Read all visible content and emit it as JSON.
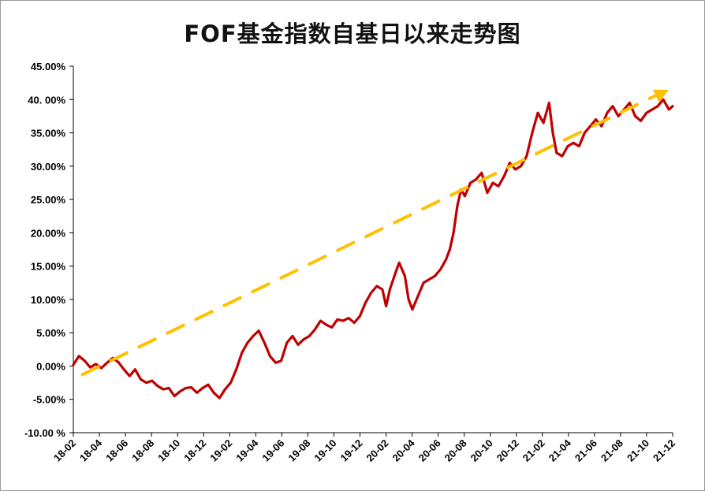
{
  "chart_data": {
    "type": "line",
    "title": "FOF基金指数自基日以来走势图",
    "xlabel": "",
    "ylabel": "",
    "ylim": [
      -10,
      45
    ],
    "y_ticks": [
      45,
      40,
      35,
      30,
      25,
      20,
      15,
      10,
      5,
      0,
      -5,
      -10
    ],
    "y_tick_labels": [
      "45.00%",
      "40. 00%",
      "35.00%",
      "30.00%",
      "25.00%",
      "20.00%",
      "15.00%",
      "10.00%",
      "5.00%",
      "0.00%",
      "-5.00%",
      "-10.00 %"
    ],
    "x_tick_labels": [
      "18-02",
      "18-04",
      "18-06",
      "18-08",
      "18-10",
      "18-12",
      "19-02",
      "19-04",
      "19-06",
      "19-08",
      "19-10",
      "19-12",
      "20-02",
      "20-04",
      "20-06",
      "20-08",
      "20-10",
      "20-12",
      "21-02",
      "21-04",
      "21-06",
      "21-08",
      "21-10",
      "21-12"
    ],
    "grid": false,
    "legend": "none",
    "colors": {
      "series": "#c00000",
      "trend": "#ffc000"
    },
    "series": [
      {
        "values": [
          [
            0,
            0.2
          ],
          [
            0.3,
            1.5
          ],
          [
            0.6,
            0.8
          ],
          [
            0.9,
            -0.2
          ],
          [
            1.2,
            0.3
          ],
          [
            1.5,
            -0.3
          ],
          [
            1.8,
            0.5
          ],
          [
            2.1,
            1.2
          ],
          [
            2.4,
            0.6
          ],
          [
            2.7,
            -0.5
          ],
          [
            3.0,
            -1.5
          ],
          [
            3.3,
            -0.5
          ],
          [
            3.6,
            -2.0
          ],
          [
            3.9,
            -2.5
          ],
          [
            4.2,
            -2.2
          ],
          [
            4.5,
            -3.0
          ],
          [
            4.8,
            -3.5
          ],
          [
            5.1,
            -3.3
          ],
          [
            5.4,
            -4.5
          ],
          [
            5.7,
            -3.8
          ],
          [
            6.0,
            -3.3
          ],
          [
            6.3,
            -3.2
          ],
          [
            6.6,
            -4.0
          ],
          [
            6.9,
            -3.3
          ],
          [
            7.2,
            -2.8
          ],
          [
            7.5,
            -4.0
          ],
          [
            7.8,
            -4.8
          ],
          [
            8.1,
            -3.5
          ],
          [
            8.4,
            -2.5
          ],
          [
            8.7,
            -0.5
          ],
          [
            9.0,
            2.0
          ],
          [
            9.3,
            3.5
          ],
          [
            9.6,
            4.5
          ],
          [
            9.9,
            5.3
          ],
          [
            10.2,
            3.5
          ],
          [
            10.5,
            1.5
          ],
          [
            10.8,
            0.5
          ],
          [
            11.1,
            0.8
          ],
          [
            11.4,
            3.5
          ],
          [
            11.7,
            4.5
          ],
          [
            12.0,
            3.2
          ],
          [
            12.3,
            4.0
          ],
          [
            12.6,
            4.5
          ],
          [
            12.9,
            5.5
          ],
          [
            13.2,
            6.8
          ],
          [
            13.5,
            6.2
          ],
          [
            13.8,
            5.8
          ],
          [
            14.1,
            7.0
          ],
          [
            14.4,
            6.8
          ],
          [
            14.7,
            7.2
          ],
          [
            15.0,
            6.5
          ],
          [
            15.3,
            7.5
          ],
          [
            15.6,
            9.5
          ],
          [
            15.9,
            11.0
          ],
          [
            16.2,
            12.0
          ],
          [
            16.5,
            11.5
          ],
          [
            16.7,
            9.0
          ],
          [
            16.9,
            11.5
          ],
          [
            17.2,
            14.0
          ],
          [
            17.4,
            15.5
          ],
          [
            17.7,
            13.5
          ],
          [
            17.9,
            10.0
          ],
          [
            18.1,
            8.5
          ],
          [
            18.4,
            10.5
          ],
          [
            18.7,
            12.5
          ],
          [
            19.0,
            13.0
          ],
          [
            19.3,
            13.5
          ],
          [
            19.6,
            14.5
          ],
          [
            19.9,
            16.0
          ],
          [
            20.1,
            17.5
          ],
          [
            20.3,
            20.0
          ],
          [
            20.5,
            24.0
          ],
          [
            20.7,
            26.5
          ],
          [
            20.9,
            25.5
          ],
          [
            21.2,
            27.5
          ],
          [
            21.5,
            28.0
          ],
          [
            21.8,
            29.0
          ],
          [
            22.1,
            26.0
          ],
          [
            22.4,
            27.5
          ],
          [
            22.7,
            27.0
          ],
          [
            23.0,
            28.5
          ],
          [
            23.3,
            30.5
          ],
          [
            23.6,
            29.5
          ],
          [
            23.9,
            30.0
          ],
          [
            24.2,
            31.5
          ],
          [
            24.5,
            35.0
          ],
          [
            24.8,
            38.0
          ],
          [
            25.1,
            36.5
          ],
          [
            25.4,
            39.5
          ],
          [
            25.6,
            35.0
          ],
          [
            25.8,
            32.0
          ],
          [
            26.1,
            31.5
          ],
          [
            26.4,
            33.0
          ],
          [
            26.7,
            33.5
          ],
          [
            27.0,
            33.0
          ],
          [
            27.3,
            35.0
          ],
          [
            27.6,
            36.0
          ],
          [
            27.9,
            37.0
          ],
          [
            28.2,
            36.0
          ],
          [
            28.5,
            38.0
          ],
          [
            28.8,
            39.0
          ],
          [
            29.1,
            37.5
          ],
          [
            29.4,
            38.5
          ],
          [
            29.7,
            39.5
          ],
          [
            30.0,
            37.5
          ],
          [
            30.3,
            36.8
          ],
          [
            30.6,
            38.0
          ],
          [
            30.9,
            38.5
          ],
          [
            31.2,
            39.0
          ],
          [
            31.5,
            40.0
          ],
          [
            31.8,
            38.5
          ],
          [
            32.0,
            39.0
          ]
        ]
      }
    ]
  }
}
